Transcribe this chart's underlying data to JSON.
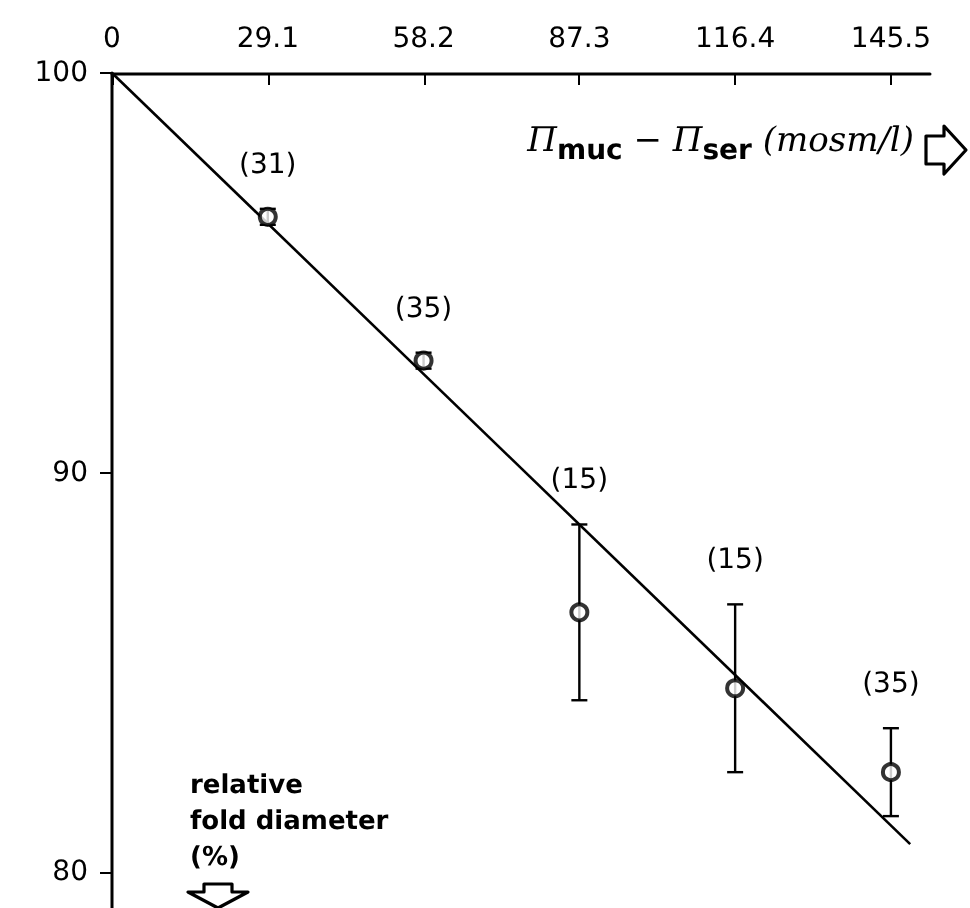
{
  "chart_data": {
    "type": "scatter",
    "xlabel": "Π$_{muc}$ − Π$_{ser}$ (mosm/l)",
    "ylabel": "relative\nfold diameter\n(%)",
    "xlim": [
      0,
      152.8
    ],
    "xticks": [
      0,
      29.1,
      58.2,
      87.3,
      116.4,
      145.5
    ],
    "ylim": [
      79.1,
      100
    ],
    "yticks": [
      80,
      90,
      100
    ],
    "grid": false,
    "marker": "circle",
    "series": [
      {
        "color": "#000000",
        "x": [
          29.1,
          58.2,
          87.3,
          116.4,
          145.5
        ],
        "values": [
          96.4,
          92.8,
          86.5,
          84.6,
          82.5
        ],
        "errors": [
          0.2,
          0.2,
          2.2,
          2.1,
          1.1
        ]
      },
      {
        "type": "line",
        "color": "#000000",
        "marker": "none",
        "line_style": "solid",
        "x": [
          0,
          149.1
        ],
        "values": [
          100,
          80.7
        ]
      }
    ],
    "annotations": [
      "(31)",
      "(35)",
      "(15)",
      "(15)",
      "(35)"
    ]
  }
}
